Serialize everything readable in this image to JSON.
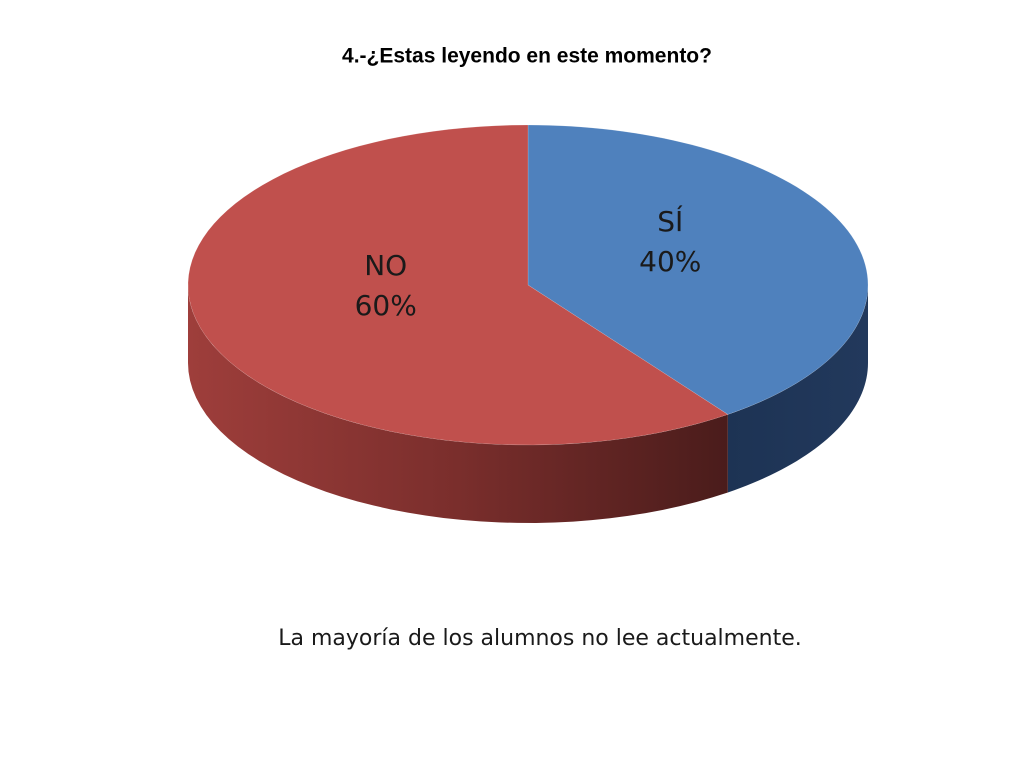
{
  "chart_data": {
    "type": "pie3d",
    "title": "4.-¿Estas leyendo en este momento?",
    "categories": [
      "SÍ",
      "NO"
    ],
    "values": [
      40,
      60
    ],
    "value_labels": [
      "40%",
      "60%"
    ],
    "colors": [
      "#4f81bd",
      "#c0504d"
    ],
    "annotation": "La mayoría de los alumnos no lee actualmente."
  }
}
